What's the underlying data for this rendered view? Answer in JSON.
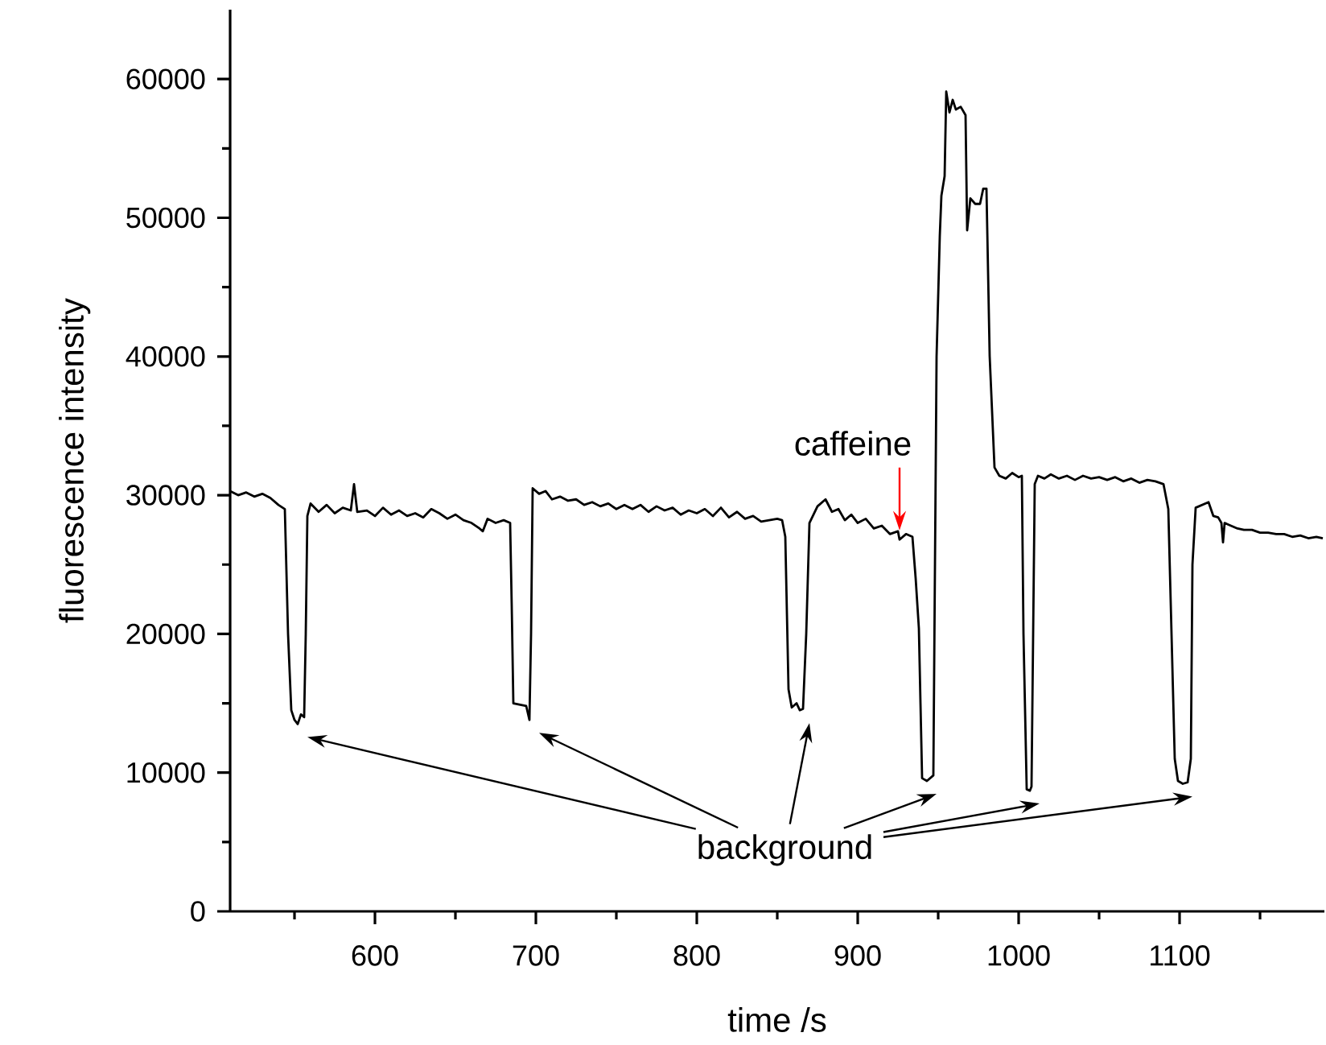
{
  "chart_data": {
    "type": "line",
    "xlabel": "time /s",
    "ylabel": "fluorescence intensity",
    "xlim": [
      510,
      1190
    ],
    "ylim": [
      0,
      65000
    ],
    "xticks": [
      {
        "value": 550,
        "label": null
      },
      600,
      {
        "value": 650,
        "label": null
      },
      700,
      {
        "value": 750,
        "label": null
      },
      800,
      {
        "value": 850,
        "label": null
      },
      900,
      {
        "value": 950,
        "label": null
      },
      1000,
      {
        "value": 1050,
        "label": null
      },
      1100,
      {
        "value": 1150,
        "label": null
      }
    ],
    "yticks": [
      0,
      {
        "value": 5000,
        "label": null
      },
      10000,
      {
        "value": 15000,
        "label": null
      },
      20000,
      {
        "value": 25000,
        "label": null
      },
      30000,
      {
        "value": 35000,
        "label": null
      },
      40000,
      {
        "value": 45000,
        "label": null
      },
      50000,
      {
        "value": 55000,
        "label": null
      },
      60000
    ],
    "annotations": [
      "background",
      {
        "text": "caffeine",
        "x": 926,
        "y": 27000
      }
    ],
    "series": [
      {
        "color": "#000000",
        "x": [
          510,
          515,
          520,
          525,
          530,
          535,
          540,
          544,
          546,
          548,
          550,
          552,
          554,
          556,
          557,
          558,
          560,
          565,
          570,
          575,
          580,
          585,
          587,
          589,
          595,
          600,
          605,
          610,
          615,
          620,
          625,
          630,
          635,
          640,
          645,
          650,
          655,
          660,
          665,
          667,
          670,
          675,
          680,
          684,
          685,
          686,
          690,
          694,
          696,
          697,
          698,
          702,
          706,
          710,
          715,
          720,
          725,
          730,
          735,
          740,
          745,
          750,
          755,
          760,
          765,
          770,
          775,
          780,
          785,
          790,
          795,
          800,
          805,
          810,
          815,
          820,
          825,
          830,
          835,
          840,
          845,
          850,
          853,
          855,
          857,
          859,
          862,
          864,
          866,
          868,
          870,
          875,
          880,
          884,
          888,
          892,
          896,
          900,
          905,
          910,
          915,
          920,
          925,
          926,
          930,
          934,
          936,
          938,
          939,
          940,
          943,
          945,
          947,
          949,
          951,
          952,
          954,
          955,
          957,
          959,
          961,
          964,
          967,
          968,
          970,
          973,
          976,
          978,
          980,
          982,
          985,
          988,
          992,
          996,
          1000,
          1002,
          1003,
          1005,
          1007,
          1008,
          1010,
          1012,
          1016,
          1020,
          1025,
          1030,
          1035,
          1040,
          1045,
          1050,
          1055,
          1060,
          1065,
          1070,
          1075,
          1080,
          1085,
          1090,
          1093,
          1095,
          1097,
          1099,
          1102,
          1105,
          1107,
          1108,
          1110,
          1114,
          1118,
          1121,
          1124,
          1126,
          1127,
          1128,
          1132,
          1136,
          1140,
          1145,
          1150,
          1155,
          1160,
          1165,
          1170,
          1175,
          1180,
          1185,
          1189
        ],
        "values": [
          30300,
          30000,
          30200,
          29900,
          30100,
          29800,
          29300,
          29000,
          20000,
          14500,
          13800,
          13500,
          14200,
          14000,
          20000,
          28500,
          29400,
          28800,
          29300,
          28700,
          29100,
          28900,
          30800,
          28800,
          28900,
          28500,
          29100,
          28600,
          28900,
          28500,
          28700,
          28400,
          29000,
          28700,
          28300,
          28600,
          28200,
          28000,
          27600,
          27400,
          28300,
          28000,
          28200,
          28000,
          22000,
          15000,
          14900,
          14800,
          13800,
          20000,
          30500,
          30100,
          30300,
          29700,
          29900,
          29600,
          29700,
          29300,
          29500,
          29200,
          29400,
          29000,
          29300,
          29000,
          29300,
          28800,
          29200,
          28900,
          29100,
          28600,
          28900,
          28700,
          29000,
          28500,
          29100,
          28400,
          28800,
          28300,
          28500,
          28100,
          28200,
          28300,
          28200,
          27000,
          16000,
          14700,
          15000,
          14500,
          14600,
          20000,
          28000,
          29200,
          29700,
          28800,
          29000,
          28200,
          28600,
          28000,
          28300,
          27600,
          27800,
          27200,
          27400,
          26800,
          27200,
          27000,
          24000,
          20400,
          15000,
          9600,
          9400,
          9600,
          9800,
          40000,
          48700,
          51600,
          53000,
          59100,
          57600,
          58500,
          57800,
          58000,
          57400,
          49100,
          51400,
          51000,
          51000,
          52100,
          52100,
          40000,
          32000,
          31400,
          31200,
          31600,
          31300,
          31400,
          20000,
          8800,
          8700,
          9000,
          30800,
          31400,
          31200,
          31500,
          31200,
          31400,
          31100,
          31400,
          31200,
          31300,
          31100,
          31300,
          31000,
          31200,
          30900,
          31100,
          31000,
          30800,
          29000,
          20000,
          11000,
          9400,
          9200,
          9300,
          11000,
          25000,
          29100,
          29300,
          29500,
          28500,
          28400,
          28000,
          26600,
          28000,
          27800,
          27600,
          27500,
          27500,
          27300,
          27300,
          27200,
          27200,
          27000,
          27100,
          26900,
          27000,
          26900
        ]
      }
    ]
  }
}
